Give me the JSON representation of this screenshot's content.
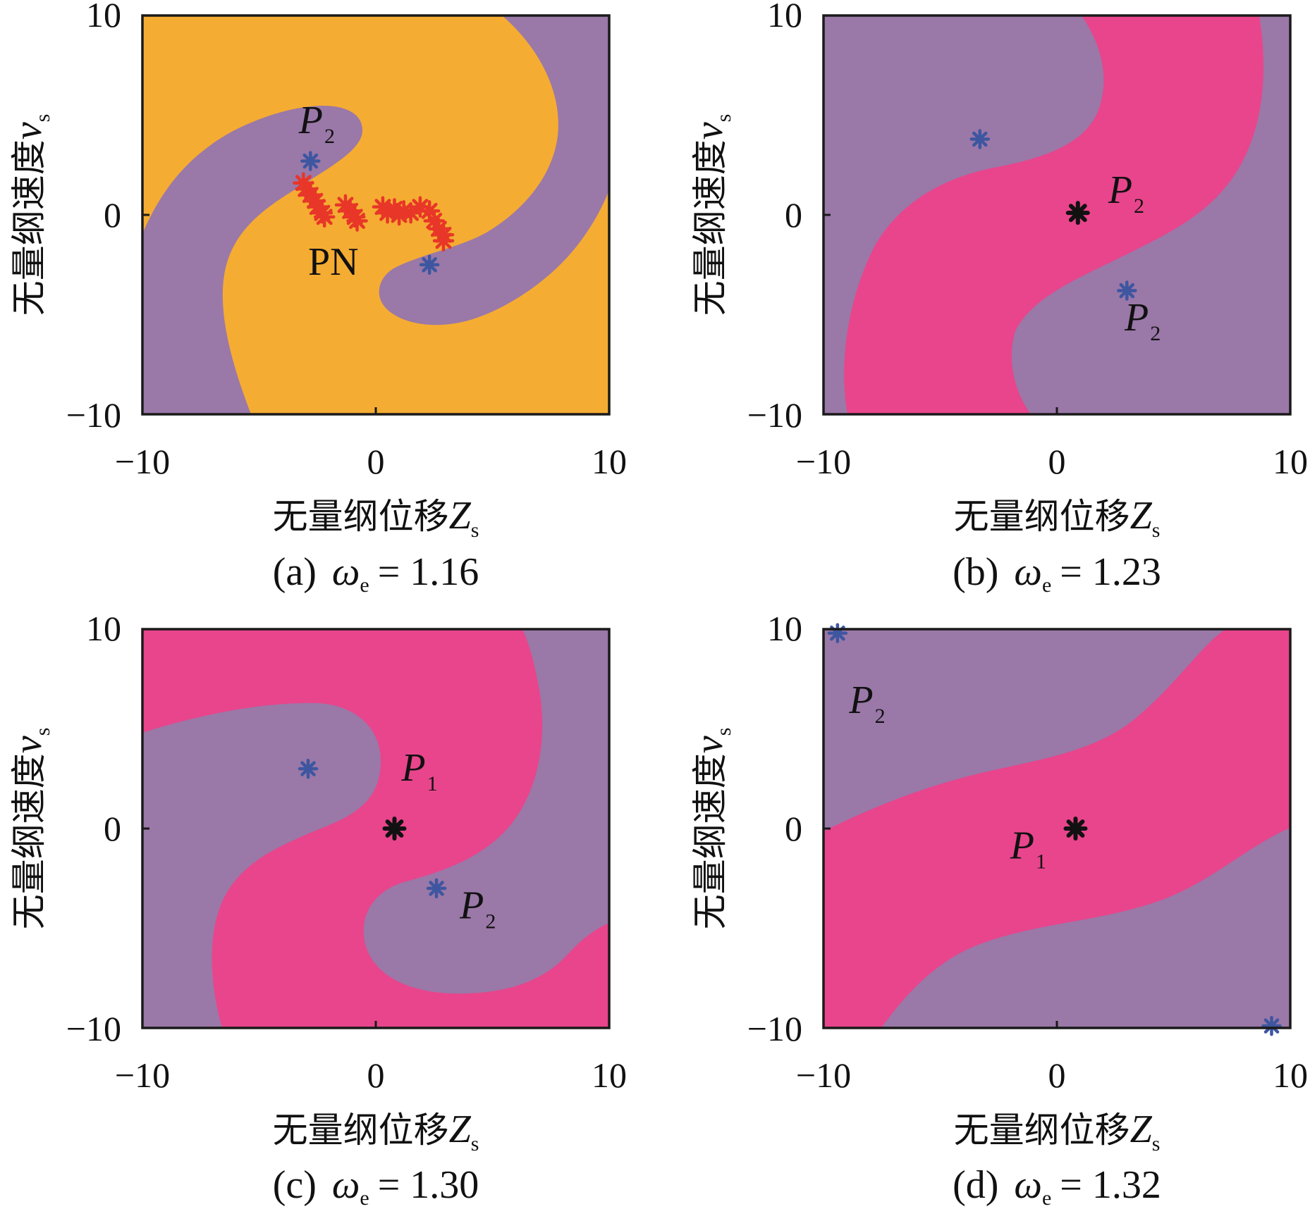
{
  "colors": {
    "purple": "#9a78a8",
    "orange": "#f5ac32",
    "pink": "#e8458c",
    "blue_marker": "#3e56a0",
    "red_marker": "#e83628",
    "black_marker": "#111111"
  },
  "chart_data": [
    {
      "type": "heatmap",
      "panel": "a",
      "caption_label": "(a)",
      "caption_symbol": "ω",
      "caption_subscript": "e",
      "caption_value": "= 1.16",
      "xlabel_text": "无量纲位移",
      "xlabel_symbol": "Z",
      "xlabel_subscript": "s",
      "ylabel_text": "无量纲速度",
      "ylabel_symbol": "v",
      "ylabel_subscript": "s",
      "xlim": [
        -10,
        10
      ],
      "ylim": [
        -10,
        10
      ],
      "xticks": [
        "−10",
        "0",
        "10"
      ],
      "yticks": [
        "10",
        "0",
        "−10"
      ],
      "background_region": "orange",
      "basin_region": "purple",
      "basin_swirl": "spiral",
      "markers": [
        {
          "name": "blue",
          "x": -2.8,
          "y": 2.7
        },
        {
          "name": "blue",
          "x": 2.3,
          "y": -2.5
        }
      ],
      "red_markers": [
        {
          "x": -3.1,
          "y": 1.6
        },
        {
          "x": -3.0,
          "y": 1.3
        },
        {
          "x": -2.8,
          "y": 1.0
        },
        {
          "x": -2.6,
          "y": 0.7
        },
        {
          "x": -2.5,
          "y": 0.4
        },
        {
          "x": -2.3,
          "y": 0.1
        },
        {
          "x": -2.2,
          "y": -0.1
        },
        {
          "x": -1.3,
          "y": 0.5
        },
        {
          "x": -1.1,
          "y": 0.2
        },
        {
          "x": -0.9,
          "y": -0.1
        },
        {
          "x": -0.8,
          "y": -0.3
        },
        {
          "x": 0.3,
          "y": 0.4
        },
        {
          "x": 0.5,
          "y": 0.1
        },
        {
          "x": 0.8,
          "y": 0.3
        },
        {
          "x": 1.0,
          "y": 0.0
        },
        {
          "x": 1.2,
          "y": 0.2
        },
        {
          "x": 1.5,
          "y": 0.1
        },
        {
          "x": 1.9,
          "y": 0.4
        },
        {
          "x": 2.3,
          "y": 0.2
        },
        {
          "x": 2.5,
          "y": -0.3
        },
        {
          "x": 2.7,
          "y": -0.7
        },
        {
          "x": 2.9,
          "y": -1.0
        },
        {
          "x": 2.9,
          "y": -1.3
        }
      ],
      "annotations": [
        {
          "label": "P",
          "sub": "2",
          "x": -3.3,
          "y": 4.1
        },
        {
          "label": "PN",
          "sub": "",
          "x": -2.9,
          "y": -3.0
        }
      ]
    },
    {
      "type": "heatmap",
      "panel": "b",
      "caption_label": "(b)",
      "caption_symbol": "ω",
      "caption_subscript": "e",
      "caption_value": "= 1.23",
      "xlabel_text": "无量纲位移",
      "xlabel_symbol": "Z",
      "xlabel_subscript": "s",
      "ylabel_text": "无量纲速度",
      "ylabel_symbol": "v",
      "ylabel_subscript": "s",
      "xlim": [
        -10,
        10
      ],
      "ylim": [
        -10,
        10
      ],
      "xticks": [
        "−10",
        "0",
        "10"
      ],
      "yticks": [
        "10",
        "0",
        "−10"
      ],
      "background_region": "purple",
      "basin_region": "pink",
      "basin_swirl": "s-band",
      "markers": [
        {
          "name": "blue",
          "x": -3.3,
          "y": 3.8
        },
        {
          "name": "blue",
          "x": 3.0,
          "y": -3.8
        },
        {
          "name": "black",
          "x": 0.9,
          "y": 0.1
        }
      ],
      "annotations": [
        {
          "label": "P",
          "sub": "2",
          "x": 2.2,
          "y": 0.6
        },
        {
          "label": "P",
          "sub": "2",
          "x": 2.9,
          "y": -5.8
        }
      ]
    },
    {
      "type": "heatmap",
      "panel": "c",
      "caption_label": "(c)",
      "caption_symbol": "ω",
      "caption_subscript": "e",
      "caption_value": "= 1.30",
      "xlabel_text": "无量纲位移",
      "xlabel_symbol": "Z",
      "xlabel_subscript": "s",
      "ylabel_text": "无量纲速度",
      "ylabel_symbol": "v",
      "ylabel_subscript": "s",
      "xlim": [
        -10,
        10
      ],
      "ylim": [
        -10,
        10
      ],
      "xticks": [
        "−10",
        "0",
        "10"
      ],
      "yticks": [
        "10",
        "0",
        "−10"
      ],
      "background_region": "pink",
      "basin_region": "purple",
      "basin_swirl": "spiral",
      "markers": [
        {
          "name": "blue",
          "x": -2.9,
          "y": 3.0
        },
        {
          "name": "blue",
          "x": 2.6,
          "y": -3.0
        },
        {
          "name": "black",
          "x": 0.8,
          "y": 0.0
        }
      ],
      "annotations": [
        {
          "label": "P",
          "sub": "1",
          "x": 1.1,
          "y": 2.4
        },
        {
          "label": "P",
          "sub": "2",
          "x": 3.6,
          "y": -4.5
        }
      ]
    },
    {
      "type": "heatmap",
      "panel": "d",
      "caption_label": "(d)",
      "caption_symbol": "ω",
      "caption_subscript": "e",
      "caption_value": "= 1.32",
      "xlabel_text": "无量纲位移",
      "xlabel_symbol": "Z",
      "xlabel_subscript": "s",
      "ylabel_text": "无量纲速度",
      "ylabel_symbol": "v",
      "ylabel_subscript": "s",
      "xlim": [
        -10,
        10
      ],
      "ylim": [
        -10,
        10
      ],
      "xticks": [
        "−10",
        "0",
        "10"
      ],
      "yticks": [
        "10",
        "0",
        "−10"
      ],
      "background_region": "purple",
      "basin_region": "pink",
      "basin_swirl": "diagonal-band",
      "markers": [
        {
          "name": "blue",
          "x": -9.4,
          "y": 9.8
        },
        {
          "name": "blue",
          "x": 9.2,
          "y": -9.9
        },
        {
          "name": "black",
          "x": 0.8,
          "y": 0.0
        }
      ],
      "annotations": [
        {
          "label": "P",
          "sub": "2",
          "x": -8.9,
          "y": 5.8
        },
        {
          "label": "P",
          "sub": "1",
          "x": -2.0,
          "y": -1.5
        }
      ]
    }
  ]
}
